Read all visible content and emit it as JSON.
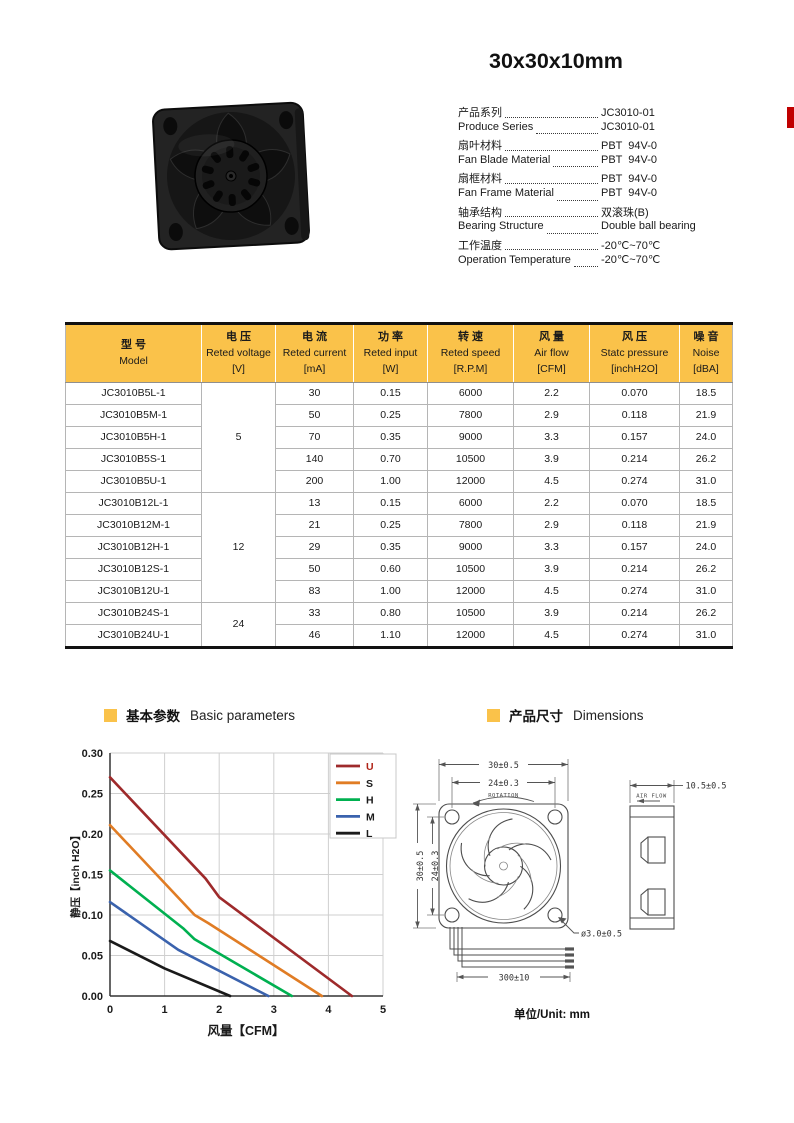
{
  "page": {
    "title": "30x30x10mm"
  },
  "colors": {
    "header_yellow": "#FAC24A",
    "accent_red": "#C00000"
  },
  "specs": [
    {
      "label": "产品系列",
      "value": "JC3010-01"
    },
    {
      "label": "Produce Series",
      "value": "JC3010-01"
    },
    {
      "label": "扇叶材料",
      "value": "PBT  94V-0"
    },
    {
      "label": "Fan Blade Material",
      "value": "PBT  94V-0"
    },
    {
      "label": "扇框材料",
      "value": "PBT  94V-0"
    },
    {
      "label": "Fan Frame Material",
      "value": "PBT  94V-0"
    },
    {
      "label": "轴承结构",
      "value": "双滚珠(B)"
    },
    {
      "label": "Bearing Structure",
      "value": "Double ball bearing"
    },
    {
      "label": "工作温度",
      "value": "-20℃~70℃"
    },
    {
      "label": "Operation Temperature",
      "value": "-20℃~70℃"
    }
  ],
  "table": {
    "headers": [
      {
        "cn": "型 号",
        "en": "Model",
        "unit": ""
      },
      {
        "cn": "电 压",
        "en": "Reted voltage",
        "unit": "[V]"
      },
      {
        "cn": "电 流",
        "en": "Reted current",
        "unit": "[mA]"
      },
      {
        "cn": "功 率",
        "en": "Reted input",
        "unit": "[W]"
      },
      {
        "cn": "转 速",
        "en": "Reted speed",
        "unit": "[R.P.M]"
      },
      {
        "cn": "风 量",
        "en": "Air flow",
        "unit": "[CFM]"
      },
      {
        "cn": "风 压",
        "en": "Statc pressure",
        "unit": "[inchH2O]"
      },
      {
        "cn": "噪 音",
        "en": "Noise",
        "unit": "[dBA]"
      }
    ],
    "voltage_groups": [
      {
        "value": "5",
        "rows": 5
      },
      {
        "value": "12",
        "rows": 5
      },
      {
        "value": "24",
        "rows": 2
      }
    ],
    "rows": [
      {
        "model": "JC3010B5L-1",
        "values": [
          "30",
          "0.15",
          "6000",
          "2.2",
          "0.070",
          "18.5"
        ]
      },
      {
        "model": "JC3010B5M-1",
        "values": [
          "50",
          "0.25",
          "7800",
          "2.9",
          "0.118",
          "21.9"
        ]
      },
      {
        "model": "JC3010B5H-1",
        "values": [
          "70",
          "0.35",
          "9000",
          "3.3",
          "0.157",
          "24.0"
        ]
      },
      {
        "model": "JC3010B5S-1",
        "values": [
          "140",
          "0.70",
          "10500",
          "3.9",
          "0.214",
          "26.2"
        ]
      },
      {
        "model": "JC3010B5U-1",
        "values": [
          "200",
          "1.00",
          "12000",
          "4.5",
          "0.274",
          "31.0"
        ]
      },
      {
        "model": "JC3010B12L-1",
        "values": [
          "13",
          "0.15",
          "6000",
          "2.2",
          "0.070",
          "18.5"
        ]
      },
      {
        "model": "JC3010B12M-1",
        "values": [
          "21",
          "0.25",
          "7800",
          "2.9",
          "0.118",
          "21.9"
        ]
      },
      {
        "model": "JC3010B12H-1",
        "values": [
          "29",
          "0.35",
          "9000",
          "3.3",
          "0.157",
          "24.0"
        ]
      },
      {
        "model": "JC3010B12S-1",
        "values": [
          "50",
          "0.60",
          "10500",
          "3.9",
          "0.214",
          "26.2"
        ]
      },
      {
        "model": "JC3010B12U-1",
        "values": [
          "83",
          "1.00",
          "12000",
          "4.5",
          "0.274",
          "31.0"
        ]
      },
      {
        "model": "JC3010B24S-1",
        "values": [
          "33",
          "0.80",
          "10500",
          "3.9",
          "0.214",
          "26.2"
        ]
      },
      {
        "model": "JC3010B24U-1",
        "values": [
          "46",
          "1.10",
          "12000",
          "4.5",
          "0.274",
          "31.0"
        ]
      }
    ]
  },
  "sections": {
    "params_cn": "基本参数",
    "params_en": "Basic parameters",
    "dims_cn": "产品尺寸",
    "dims_en": "Dimensions"
  },
  "chart_data": {
    "type": "line",
    "xlabel": "风量【CFM】",
    "ylabel": "静压【inch H2O】",
    "xlim": [
      0,
      5
    ],
    "ylim": [
      0,
      0.3
    ],
    "xticks": [
      0,
      1,
      2,
      3,
      4,
      5
    ],
    "yticks": [
      0,
      0.05,
      0.1,
      0.15,
      0.2,
      0.25,
      0.3
    ],
    "grid": true,
    "grid_color": "#cfcfcf",
    "legend_position": "top-right",
    "series": [
      {
        "name": "U",
        "color": "#9E2A2B",
        "label_color": "#B02418",
        "points": [
          [
            0,
            0.27
          ],
          [
            1.75,
            0.145
          ],
          [
            2.0,
            0.122
          ],
          [
            4.43,
            0
          ]
        ]
      },
      {
        "name": "S",
        "color": "#E07C24",
        "label_color": "#1a1a1a",
        "points": [
          [
            0,
            0.211
          ],
          [
            1.55,
            0.1
          ],
          [
            1.8,
            0.09
          ],
          [
            3.88,
            0
          ]
        ]
      },
      {
        "name": "H",
        "color": "#00B050",
        "label_color": "#1a1a1a",
        "points": [
          [
            0,
            0.155
          ],
          [
            1.35,
            0.083
          ],
          [
            1.55,
            0.07
          ],
          [
            3.33,
            0
          ]
        ]
      },
      {
        "name": "M",
        "color": "#3A62AD",
        "label_color": "#1a1a1a",
        "points": [
          [
            0,
            0.116
          ],
          [
            1.25,
            0.057
          ],
          [
            2.9,
            0
          ]
        ]
      },
      {
        "name": "L",
        "color": "#1A1A1A",
        "label_color": "#1a1a1a",
        "points": [
          [
            0,
            0.068
          ],
          [
            1.0,
            0.034
          ],
          [
            2.2,
            0
          ]
        ]
      }
    ]
  },
  "drawing": {
    "width_top": "30±0.5",
    "holes_width": "24±0.3",
    "rotation": "ROTATION",
    "height_left": "30±0.5",
    "holes_height": "24±0.3",
    "hole_dia": "ø3.0±0.5",
    "wire_len": "300±10",
    "depth": "10.5±0.5",
    "air_flow": "AIR FLOW",
    "unit": "单位/Unit: mm"
  }
}
